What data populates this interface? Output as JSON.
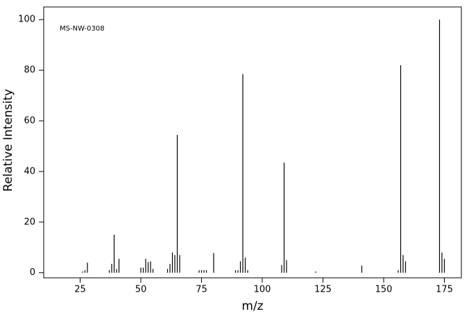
{
  "chart_data": {
    "type": "stem",
    "annotation": "MS-NW-0308",
    "x_label": "m/z",
    "y_label": "Relative Intensity",
    "color": "#000000",
    "x": [
      26,
      27,
      28,
      37,
      38,
      39,
      40,
      41,
      50,
      51,
      52,
      53,
      54,
      55,
      61,
      62,
      63,
      64,
      65,
      66,
      74,
      75,
      76,
      77,
      80,
      89,
      90,
      91,
      92,
      93,
      94,
      108,
      109,
      110,
      122,
      141,
      156,
      157,
      158,
      159,
      173,
      174,
      175
    ],
    "values": [
      0.5,
      1,
      4,
      1,
      3.5,
      15,
      1.5,
      5.5,
      2,
      2,
      5.5,
      4.2,
      4.5,
      1.5,
      1.5,
      3.5,
      8,
      7,
      54.5,
      7,
      1,
      1,
      1,
      1,
      7.8,
      1,
      1,
      4.5,
      78.5,
      6,
      1,
      3,
      43.5,
      5,
      0.5,
      2.8,
      1,
      82,
      7,
      4.5,
      100,
      8,
      5.5
    ],
    "xlim": [
      10,
      182
    ],
    "ylim": [
      -2,
      105
    ],
    "xticks": [
      25,
      50,
      75,
      100,
      125,
      150,
      175
    ],
    "yticks": [
      0,
      20,
      40,
      60,
      80,
      100
    ]
  }
}
